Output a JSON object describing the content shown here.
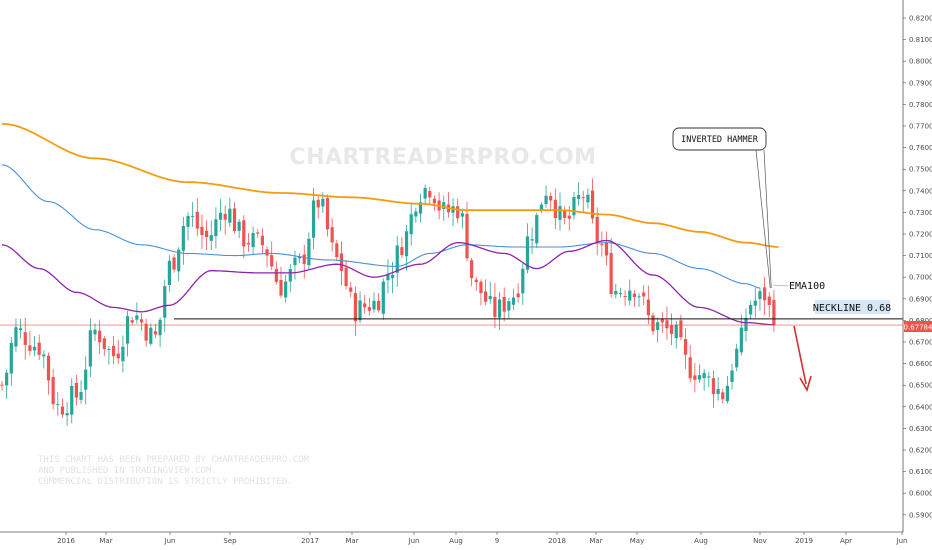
{
  "watermark": "CHARTREADERPRO.COM",
  "disclaimer": [
    "THIS CHART HAS BEEN PREPARED BY CHARTREADERPRO.COM",
    "AND PUBLISHED IN TRADINGVIEW.COM.",
    "COMMERCIAL DISTRIBUTION IS STRICTLY PROHIBITED."
  ],
  "annotations": {
    "inverted_hammer": "INVERTED HAMMER",
    "ema100": "EMA100",
    "neckline": "NECKLINE 0.68",
    "price_badge": "0.67784"
  },
  "colors": {
    "bull": "#26a69a",
    "bear": "#ef5350",
    "ema_orange": "#f39c12",
    "ema_blue": "#4a90d9",
    "ema_purple": "#8e24aa",
    "neckline": "#111111",
    "price_line": "#ef5350",
    "arrow": "#d32f2f",
    "neck_box": "#d6e6f5"
  },
  "chart_data": {
    "type": "candlestick",
    "instrument": "",
    "timeframe": "weekly",
    "ylim": [
      0.585,
      0.825
    ],
    "y_ticks": [
      "0.82000",
      "0.81000",
      "0.80000",
      "0.79000",
      "0.78000",
      "0.77000",
      "0.76000",
      "0.75000",
      "0.74000",
      "0.73000",
      "0.72000",
      "0.71000",
      "0.70000",
      "0.69000",
      "0.68000",
      "0.67000",
      "0.66000",
      "0.65000",
      "0.64000",
      "0.63000",
      "0.62000",
      "0.61000",
      "0.60000",
      "0.59000"
    ],
    "x_ticks": [
      "2016",
      "Mar",
      "Jun",
      "Sep",
      "2017",
      "Mar",
      "Jun",
      "Aug",
      "9",
      "2018",
      "Mar",
      "May",
      "Aug",
      "Nov",
      "2019",
      "Apr",
      "Jun"
    ],
    "current_price": 0.67784,
    "neckline": 0.68,
    "series": [
      {
        "name": "",
        "type": "ema",
        "knots": [
          [
            0,
            0.771
          ],
          [
            20,
            0.755
          ],
          [
            40,
            0.744
          ],
          [
            60,
            0.739
          ],
          [
            75,
            0.737
          ],
          [
            90,
            0.734
          ],
          [
            100,
            0.731
          ],
          [
            110,
            0.731
          ],
          [
            120,
            0.731
          ],
          [
            130,
            0.729
          ],
          [
            140,
            0.725
          ],
          [
            150,
            0.721
          ],
          [
            160,
            0.716
          ],
          [
            167,
            0.714
          ]
        ]
      },
      {
        "name": "",
        "type": "ema",
        "knots": [
          [
            0,
            0.752
          ],
          [
            10,
            0.735
          ],
          [
            20,
            0.722
          ],
          [
            30,
            0.715
          ],
          [
            40,
            0.711
          ],
          [
            50,
            0.71
          ],
          [
            58,
            0.711
          ],
          [
            70,
            0.708
          ],
          [
            85,
            0.705
          ],
          [
            92,
            0.711
          ],
          [
            100,
            0.715
          ],
          [
            110,
            0.714
          ],
          [
            120,
            0.714
          ],
          [
            130,
            0.716
          ],
          [
            140,
            0.711
          ],
          [
            150,
            0.704
          ],
          [
            160,
            0.697
          ],
          [
            163,
            0.695
          ]
        ]
      },
      {
        "name": "",
        "type": "ema",
        "knots": [
          [
            0,
            0.715
          ],
          [
            8,
            0.704
          ],
          [
            16,
            0.693
          ],
          [
            24,
            0.686
          ],
          [
            30,
            0.684
          ],
          [
            36,
            0.687
          ],
          [
            45,
            0.703
          ],
          [
            55,
            0.702
          ],
          [
            62,
            0.702
          ],
          [
            72,
            0.706
          ],
          [
            80,
            0.7
          ],
          [
            90,
            0.706
          ],
          [
            98,
            0.716
          ],
          [
            108,
            0.711
          ],
          [
            115,
            0.704
          ],
          [
            122,
            0.712
          ],
          [
            130,
            0.717
          ],
          [
            140,
            0.701
          ],
          [
            150,
            0.686
          ],
          [
            160,
            0.679
          ],
          [
            166,
            0.678
          ]
        ]
      }
    ],
    "candle_path": [
      [
        0,
        0.65
      ],
      [
        3,
        0.675
      ],
      [
        8,
        0.668
      ],
      [
        12,
        0.64
      ],
      [
        16,
        0.645
      ],
      [
        20,
        0.675
      ],
      [
        24,
        0.664
      ],
      [
        28,
        0.683
      ],
      [
        33,
        0.672
      ],
      [
        36,
        0.705
      ],
      [
        40,
        0.728
      ],
      [
        44,
        0.718
      ],
      [
        48,
        0.732
      ],
      [
        52,
        0.718
      ],
      [
        56,
        0.715
      ],
      [
        60,
        0.696
      ],
      [
        64,
        0.706
      ],
      [
        68,
        0.735
      ],
      [
        72,
        0.708
      ],
      [
        76,
        0.685
      ],
      [
        80,
        0.688
      ],
      [
        84,
        0.705
      ],
      [
        86,
        0.716
      ],
      [
        90,
        0.74
      ],
      [
        92,
        0.742
      ],
      [
        95,
        0.73
      ],
      [
        98,
        0.732
      ],
      [
        102,
        0.695
      ],
      [
        106,
        0.684
      ],
      [
        110,
        0.692
      ],
      [
        114,
        0.722
      ],
      [
        117,
        0.741
      ],
      [
        121,
        0.725
      ],
      [
        125,
        0.738
      ],
      [
        128,
        0.718
      ],
      [
        132,
        0.694
      ],
      [
        136,
        0.696
      ],
      [
        140,
        0.678
      ],
      [
        144,
        0.675
      ],
      [
        148,
        0.658
      ],
      [
        152,
        0.652
      ],
      [
        155,
        0.646
      ],
      [
        158,
        0.665
      ],
      [
        161,
        0.688
      ],
      [
        163,
        0.69
      ],
      [
        164,
        0.692
      ],
      [
        166,
        0.678
      ]
    ],
    "annotations": [
      "INVERTED HAMMER",
      "EMA100",
      "NECKLINE 0.68"
    ]
  }
}
